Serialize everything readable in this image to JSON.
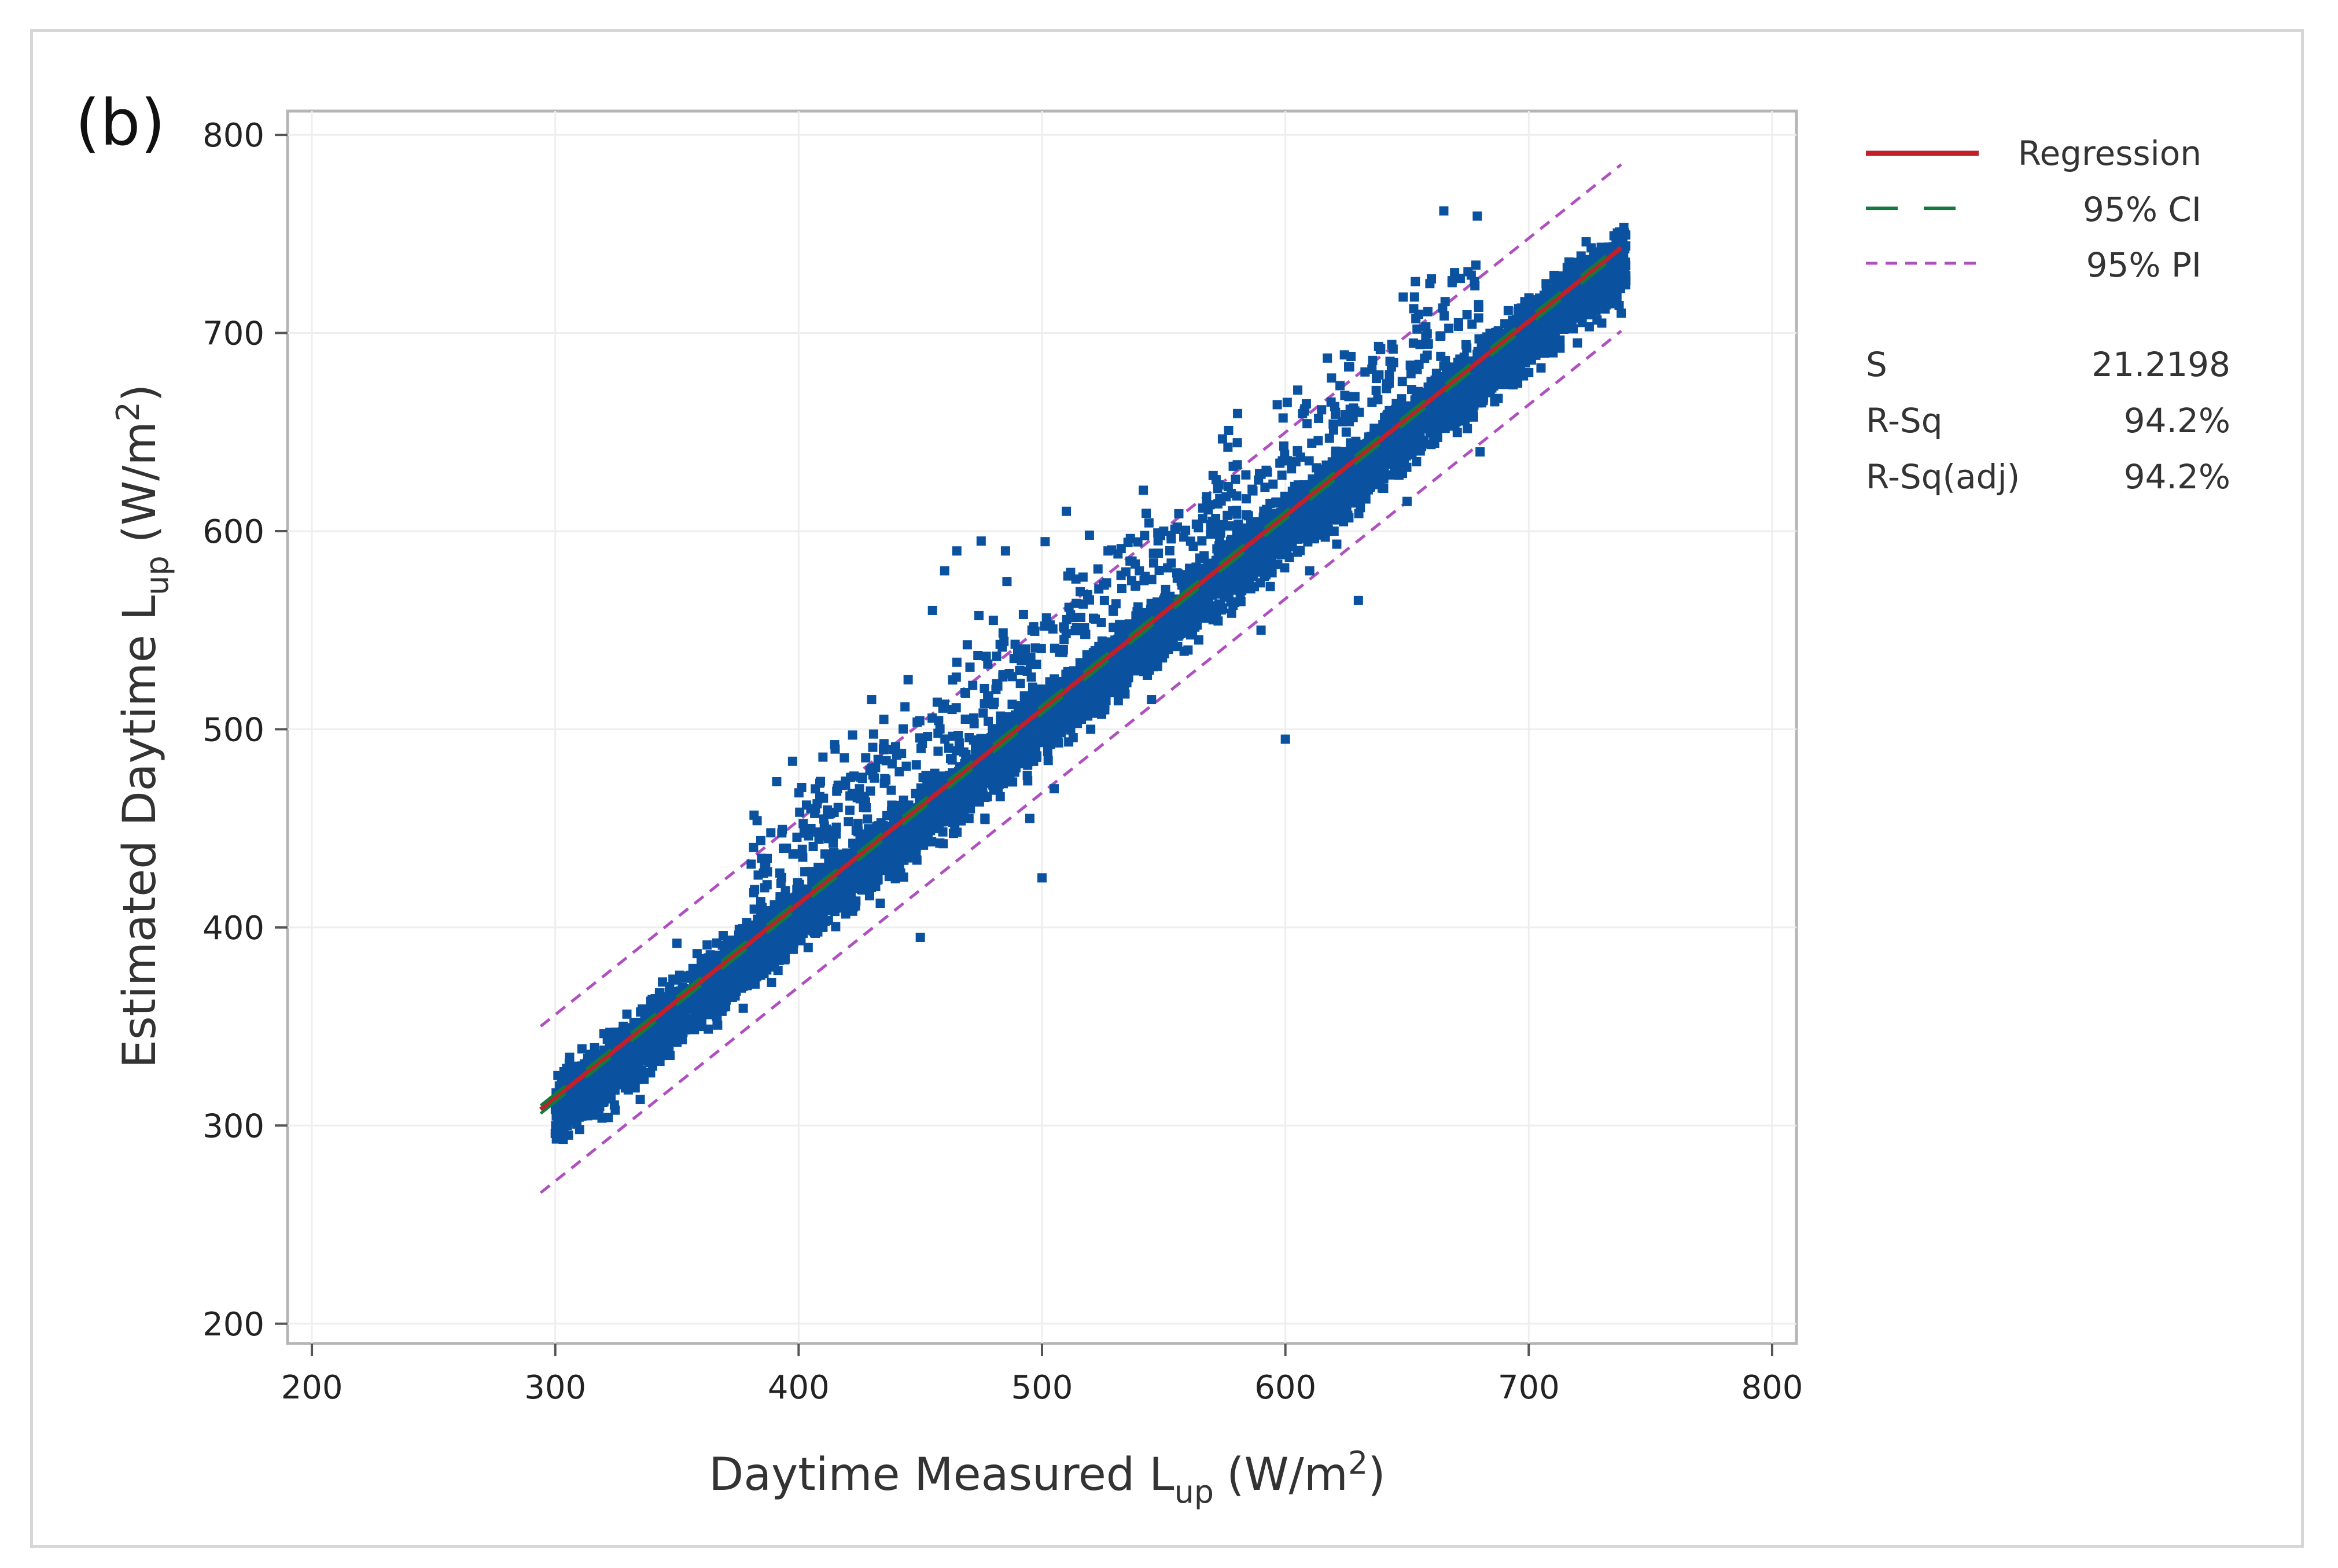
{
  "panel_label": "(b)",
  "chart_data": {
    "type": "scatter",
    "xlabel_main": "Daytime Measured L",
    "xlabel_sub": "up",
    "xlabel_unit_pre": "(W/m",
    "xlabel_unit_sup": "2",
    "xlabel_unit_post": ")",
    "ylabel_main": "Estimated Daytime L",
    "ylabel_sub": "up",
    "ylabel_unit_pre": "(W/m",
    "ylabel_unit_sup": "2",
    "ylabel_unit_post": ")",
    "xlim": [
      190,
      810
    ],
    "ylim": [
      190,
      812
    ],
    "xticks": [
      200,
      300,
      400,
      500,
      600,
      700,
      800
    ],
    "yticks": [
      200,
      300,
      400,
      500,
      600,
      700,
      800
    ],
    "grid": true,
    "legend_placement": "right",
    "regression": {
      "intercept": 20.1,
      "slope": 0.9796,
      "x_range": [
        294,
        738
      ]
    },
    "ci_half_width": 2,
    "pi_half_width": 42,
    "points_estimated": "dense cloud of several thousand points along the fit line, x from about 300 to 740",
    "sample_points": [
      [
        300,
        296
      ],
      [
        305,
        300
      ],
      [
        310,
        298
      ],
      [
        320,
        312
      ],
      [
        330,
        318
      ],
      [
        340,
        330
      ],
      [
        350,
        342
      ],
      [
        350,
        392
      ],
      [
        360,
        350
      ],
      [
        365,
        368
      ],
      [
        370,
        360
      ],
      [
        380,
        372
      ],
      [
        385,
        410
      ],
      [
        390,
        380
      ],
      [
        395,
        440
      ],
      [
        400,
        395
      ],
      [
        405,
        460
      ],
      [
        410,
        400
      ],
      [
        415,
        490
      ],
      [
        420,
        410
      ],
      [
        425,
        470
      ],
      [
        430,
        515
      ],
      [
        435,
        505
      ],
      [
        440,
        430
      ],
      [
        445,
        525
      ],
      [
        450,
        395
      ],
      [
        455,
        560
      ],
      [
        460,
        580
      ],
      [
        465,
        590
      ],
      [
        470,
        455
      ],
      [
        475,
        595
      ],
      [
        480,
        555
      ],
      [
        485,
        590
      ],
      [
        490,
        495
      ],
      [
        495,
        455
      ],
      [
        500,
        425
      ],
      [
        505,
        470
      ],
      [
        510,
        610
      ],
      [
        515,
        520
      ],
      [
        520,
        500
      ],
      [
        530,
        545
      ],
      [
        540,
        580
      ],
      [
        545,
        515
      ],
      [
        550,
        600
      ],
      [
        560,
        540
      ],
      [
        570,
        605
      ],
      [
        575,
        575
      ],
      [
        580,
        600
      ],
      [
        590,
        550
      ],
      [
        600,
        495
      ],
      [
        605,
        640
      ],
      [
        610,
        580
      ],
      [
        620,
        600
      ],
      [
        625,
        650
      ],
      [
        630,
        565
      ],
      [
        640,
        630
      ],
      [
        650,
        615
      ],
      [
        660,
        650
      ],
      [
        670,
        660
      ],
      [
        680,
        640
      ],
      [
        690,
        675
      ],
      [
        700,
        680
      ],
      [
        710,
        690
      ],
      [
        720,
        695
      ],
      [
        730,
        705
      ],
      [
        738,
        710
      ]
    ],
    "series": [
      {
        "name": "Regression",
        "color": "#c0202a",
        "style": "solid"
      },
      {
        "name": "95% CI",
        "color": "#137a3c",
        "style": "dashed"
      },
      {
        "name": "95% PI",
        "color": "#b050c0",
        "style": "dotted"
      }
    ],
    "point_color": "#0a52a0",
    "stats": [
      {
        "label": "S",
        "value": "21.2198"
      },
      {
        "label": "R-Sq",
        "value": "94.2%"
      },
      {
        "label": "R-Sq(adj)",
        "value": "94.2%"
      }
    ]
  }
}
